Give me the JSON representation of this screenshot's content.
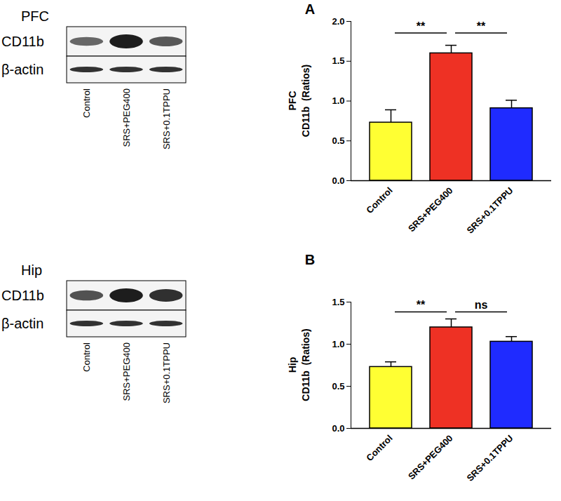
{
  "blots": [
    {
      "region": "PFC",
      "rows": [
        "CD11b",
        "β-actin"
      ],
      "lanes": [
        "Control",
        "SRS+PEG400",
        "SRS+0.1TPPU"
      ]
    },
    {
      "region": "Hip",
      "rows": [
        "CD11b",
        "β-actin"
      ],
      "lanes": [
        "Control",
        "SRS+PEG400",
        "SRS+0.1TPPU"
      ]
    }
  ],
  "chart_data": [
    {
      "type": "bar",
      "panel": "A",
      "y_label": "PFC\nCD11b  (Ratios)",
      "categories": [
        "Control",
        "SRS+PEG400",
        "SRS+0.1TPPU"
      ],
      "values": [
        0.73,
        1.6,
        0.91
      ],
      "errors": [
        0.16,
        0.1,
        0.1
      ],
      "colors": [
        "#ffff33",
        "#ee3124",
        "#1f2bff"
      ],
      "ylim": [
        0,
        2
      ],
      "yticks": [
        {
          "value": 0,
          "label": "0.0"
        },
        {
          "value": 0.5,
          "label": "0.5"
        },
        {
          "value": 1,
          "label": "1.0"
        },
        {
          "value": 1.5,
          "label": "1.5"
        },
        {
          "value": 2,
          "label": "2.0"
        }
      ],
      "annotations": [
        {
          "between": [
            "Control",
            "SRS+PEG400"
          ],
          "y": 1.85,
          "label": "**"
        },
        {
          "between": [
            "SRS+PEG400",
            "SRS+0.1TPPU"
          ],
          "y": 1.85,
          "label": "**"
        }
      ]
    },
    {
      "type": "bar",
      "panel": "B",
      "y_label": "Hip\nCD11b  (Ratios)",
      "categories": [
        "Control",
        "SRS+PEG400",
        "SRS+0.1TPPU"
      ],
      "values": [
        0.73,
        1.2,
        1.03
      ],
      "errors": [
        0.06,
        0.1,
        0.06
      ],
      "colors": [
        "#ffff33",
        "#ee3124",
        "#1f2bff"
      ],
      "ylim": [
        0,
        1.5
      ],
      "yticks": [
        {
          "value": 0,
          "label": "0.0"
        },
        {
          "value": 0.5,
          "label": "0.5"
        },
        {
          "value": 1,
          "label": "1.0"
        },
        {
          "value": 1.5,
          "label": "1.5"
        }
      ],
      "annotations": [
        {
          "between": [
            "Control",
            "SRS+PEG400"
          ],
          "y": 1.38,
          "label": "**"
        },
        {
          "between": [
            "SRS+PEG400",
            "SRS+0.1TPPU"
          ],
          "y": 1.38,
          "label": "ns"
        }
      ]
    }
  ]
}
